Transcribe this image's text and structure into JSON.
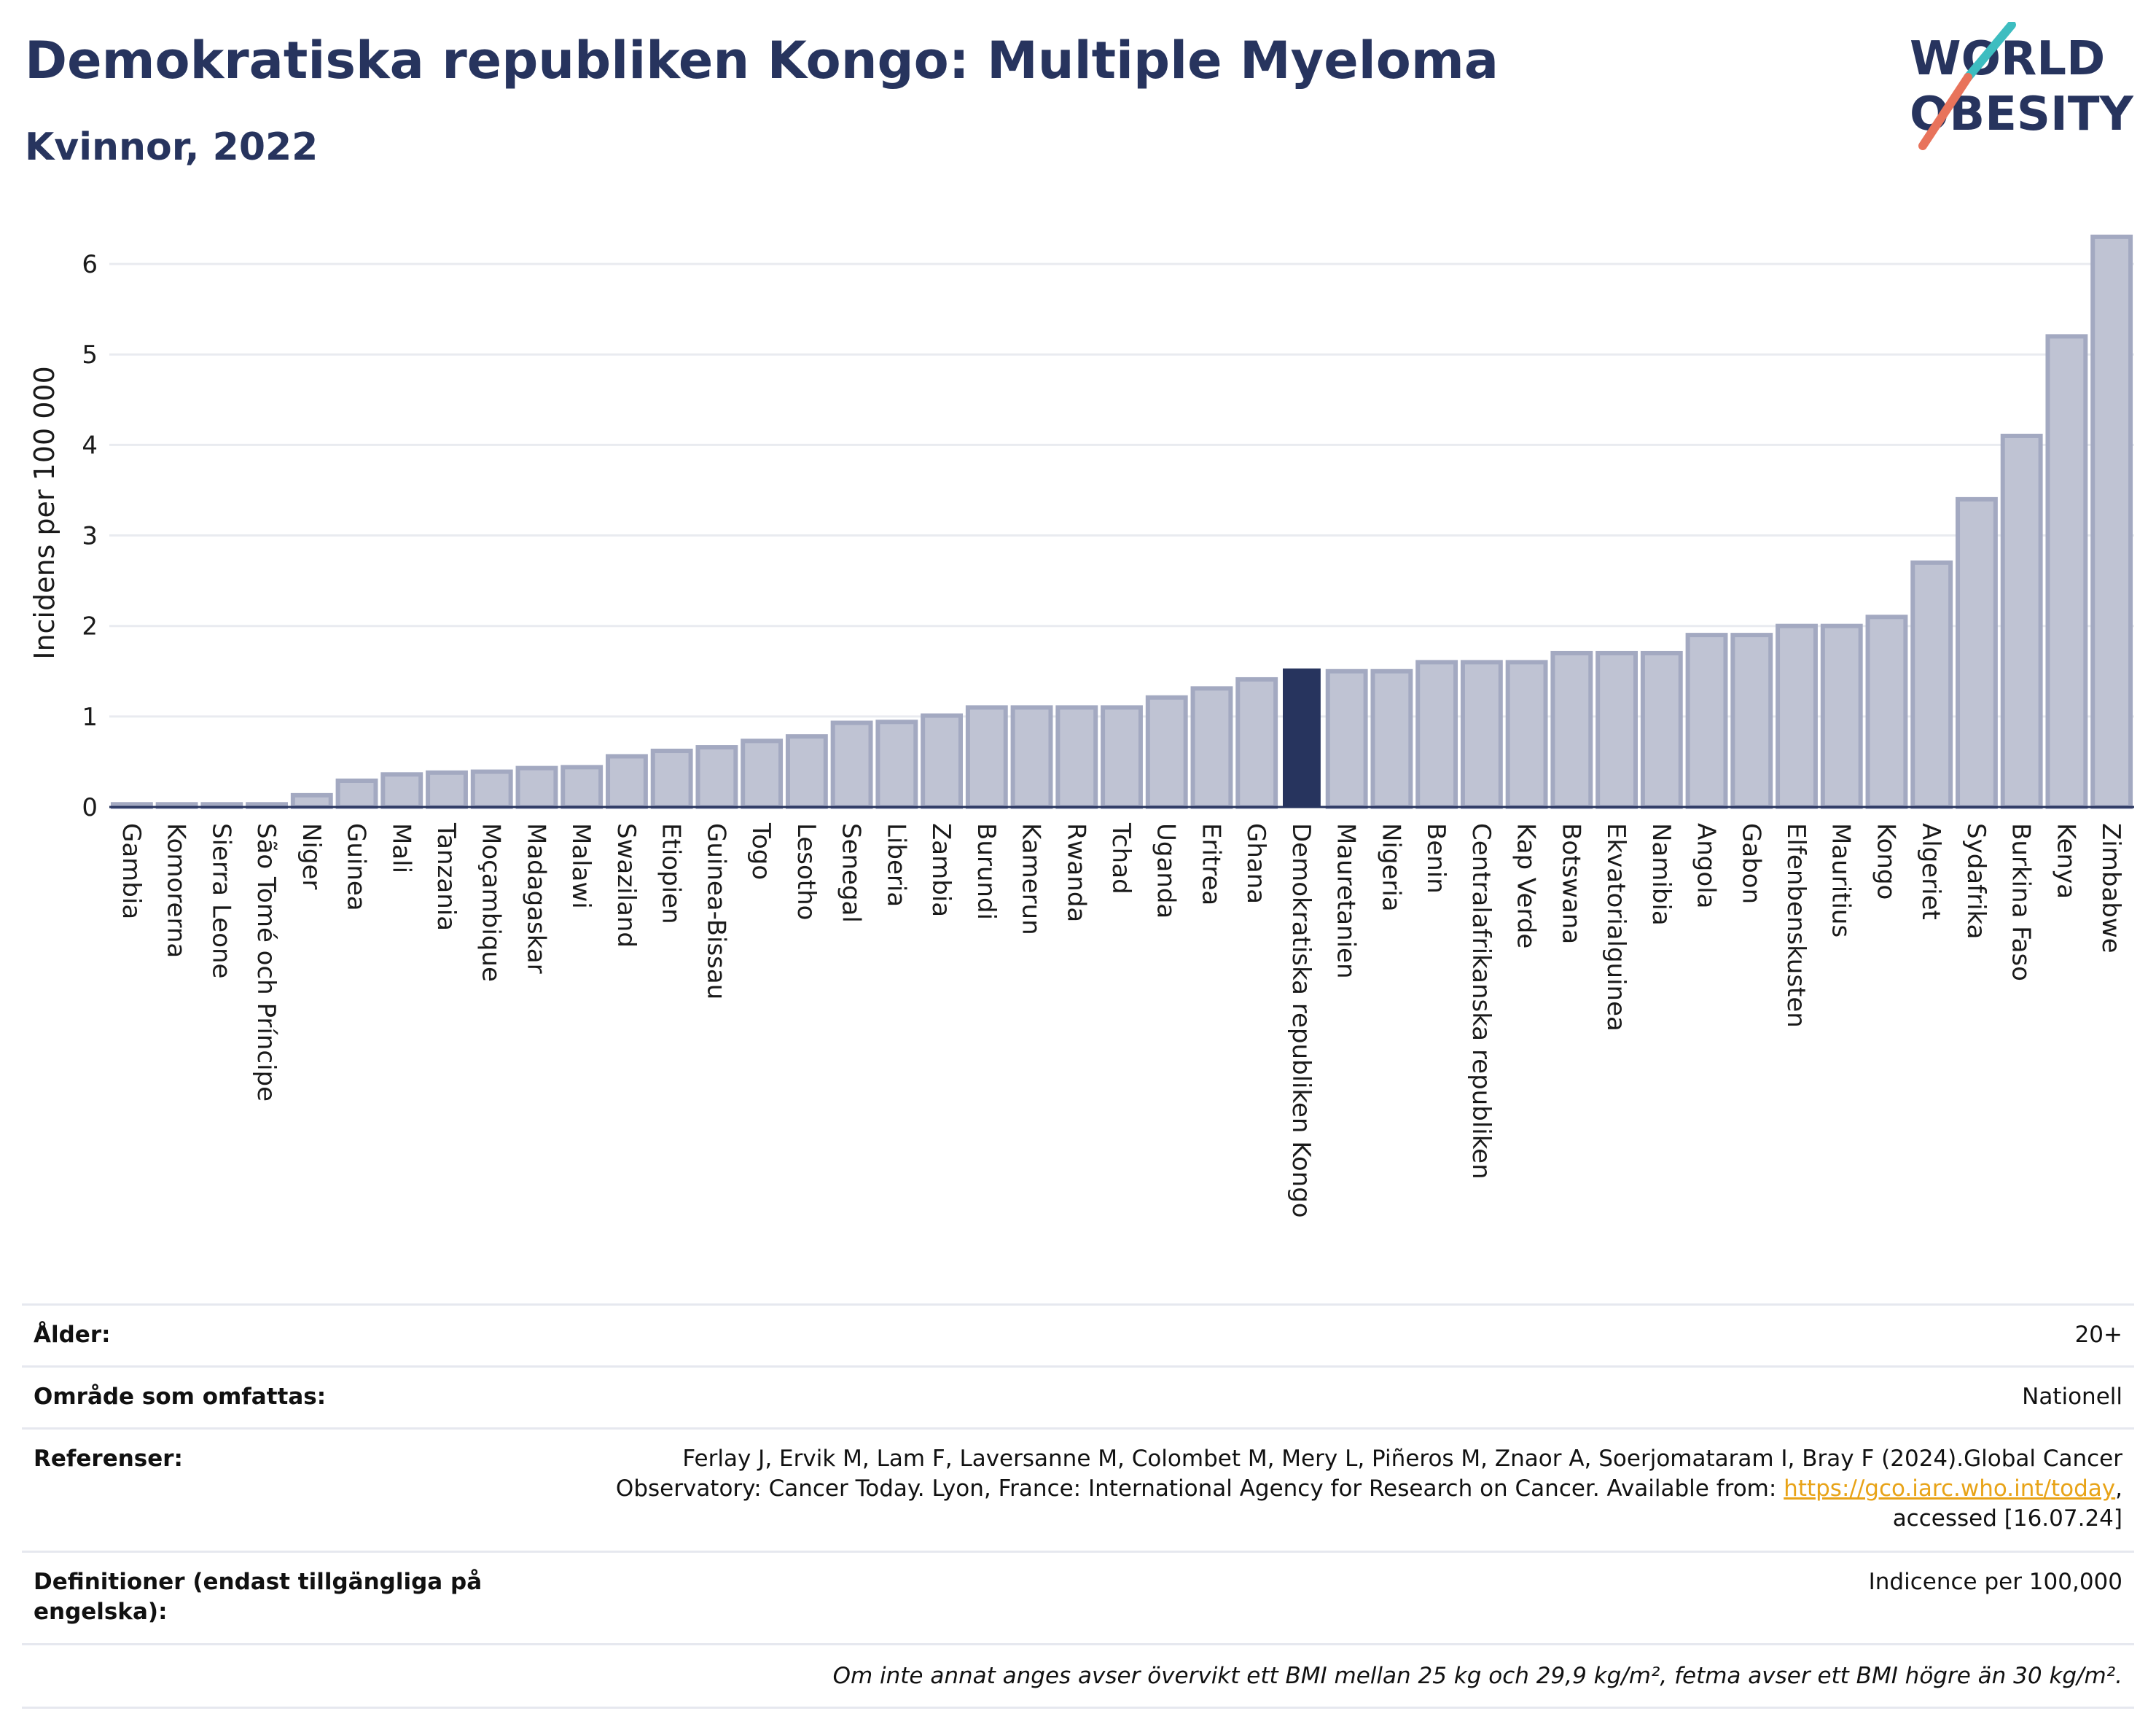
{
  "header": {
    "title": "Demokratiska republiken Kongo: Multiple Myeloma",
    "subtitle": "Kvinnor, 2022",
    "logo_line1": "WORLD",
    "logo_line2": "OBESITY"
  },
  "colors": {
    "bar": "#bfc3d3",
    "bar_stroke": "#a3a9c1",
    "highlight": "#27345e",
    "grid": "#e9ebf0",
    "axis": "#27345e",
    "logo_teal": "#3dbdc0",
    "logo_coral": "#e8735b"
  },
  "chart_data": {
    "type": "bar",
    "title": "Demokratiska republiken Kongo: Multiple Myeloma",
    "subtitle": "Kvinnor, 2022",
    "xlabel": "",
    "ylabel": "Incidens per 100 000",
    "ylim": [
      0,
      6.5
    ],
    "yticks": [
      0,
      1,
      2,
      3,
      4,
      5,
      6
    ],
    "grid": true,
    "highlight": "Demokratiska republiken Kongo",
    "categories": [
      "Gambia",
      "Komorerna",
      "Sierra Leone",
      "São Tomé och Príncipe",
      "Niger",
      "Guinea",
      "Mali",
      "Tanzania",
      "Moçambique",
      "Madagaskar",
      "Malawi",
      "Swaziland",
      "Etiopien",
      "Guinea-Bissau",
      "Togo",
      "Lesotho",
      "Senegal",
      "Liberia",
      "Zambia",
      "Burundi",
      "Kamerun",
      "Rwanda",
      "Tchad",
      "Uganda",
      "Eritrea",
      "Ghana",
      "Demokratiska republiken Kongo",
      "Mauretanien",
      "Nigeria",
      "Benin",
      "Centralafrikanska republiken",
      "Kap Verde",
      "Botswana",
      "Ekvatorialguinea",
      "Namibia",
      "Angola",
      "Gabon",
      "Elfenbenskusten",
      "Mauritius",
      "Kongo",
      "Algeriet",
      "Sydafrika",
      "Burkina Faso",
      "Kenya",
      "Zimbabwe"
    ],
    "values": [
      0.03,
      0.03,
      0.03,
      0.03,
      0.13,
      0.29,
      0.36,
      0.38,
      0.39,
      0.43,
      0.44,
      0.56,
      0.62,
      0.66,
      0.73,
      0.78,
      0.93,
      0.94,
      1.01,
      1.1,
      1.1,
      1.1,
      1.1,
      1.21,
      1.31,
      1.41,
      1.53,
      1.5,
      1.5,
      1.6,
      1.6,
      1.6,
      1.7,
      1.7,
      1.7,
      1.9,
      1.9,
      2.0,
      2.0,
      2.1,
      2.7,
      3.4,
      4.1,
      5.2,
      6.3
    ]
  },
  "info": [
    {
      "label": "Ålder:",
      "value": "20+"
    },
    {
      "label": "Område som omfattas:",
      "value": "Nationell"
    },
    {
      "label": "Referenser:",
      "value_line1": "Ferlay J, Ervik M, Lam F, Laversanne M, Colombet M, Mery L, Piñeros M, Znaor A, Soerjomataram I, Bray F (2024).Global Cancer",
      "value_line2_prefix": "Observatory: Cancer Today. Lyon, France: International Agency for Research on Cancer. Available from: ",
      "value_link": "https://gco.iarc.who.int/today",
      "value_line2_suffix": ",",
      "value_line3": "accessed [16.07.24]"
    },
    {
      "label_line1": "Definitioner (endast tillgängliga på",
      "label_line2": "engelska):",
      "value": "Indicence per 100,000"
    }
  ],
  "footnote": "Om inte annat anges avser övervikt ett BMI mellan 25 kg och 29,9 kg/m², fetma avser ett BMI högre än 30 kg/m²."
}
